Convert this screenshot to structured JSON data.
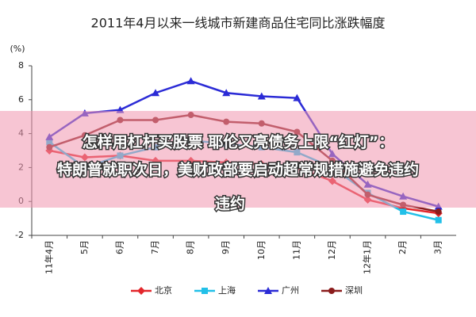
{
  "chart_data": {
    "type": "line",
    "title": "2011年4月以来一线城市新建商品住宅同比涨跌幅度",
    "y_label": "(%)",
    "categories": [
      "11年4月",
      "5月",
      "6月",
      "7月",
      "8月",
      "9月",
      "10月",
      "11月",
      "12月",
      "12年1月",
      "2月",
      "3月"
    ],
    "series": [
      {
        "name": "北京",
        "color": "#e3262b",
        "marker": "diamond",
        "values": [
          3.0,
          2.6,
          2.7,
          2.4,
          2.4,
          2.3,
          2.2,
          2.0,
          1.2,
          0.1,
          -0.4,
          -0.7
        ]
      },
      {
        "name": "上海",
        "color": "#22c0e8",
        "marker": "square",
        "values": [
          3.5,
          2.0,
          2.7,
          3.2,
          3.6,
          3.4,
          3.2,
          2.9,
          2.0,
          0.5,
          -0.6,
          -1.1
        ]
      },
      {
        "name": "广州",
        "color": "#2b2bd6",
        "marker": "triangle",
        "values": [
          3.8,
          5.2,
          5.4,
          6.4,
          7.1,
          6.4,
          6.2,
          6.1,
          2.8,
          1.0,
          0.3,
          -0.3
        ]
      },
      {
        "name": "深圳",
        "color": "#8b1c1c",
        "marker": "circle",
        "values": [
          3.2,
          3.9,
          4.8,
          4.8,
          5.1,
          4.7,
          4.6,
          4.1,
          2.4,
          0.4,
          -0.2,
          -0.6
        ]
      }
    ],
    "ylim": [
      -2,
      8
    ],
    "yticks": [
      -2,
      0,
      2,
      4,
      6,
      8
    ],
    "annotations": [
      "怎样用杠杆买股票 耶伦又亮债务上限“红灯”：",
      "特朗普就职次日，美财政部要启动超常规措施避免违约",
      "违约"
    ]
  }
}
